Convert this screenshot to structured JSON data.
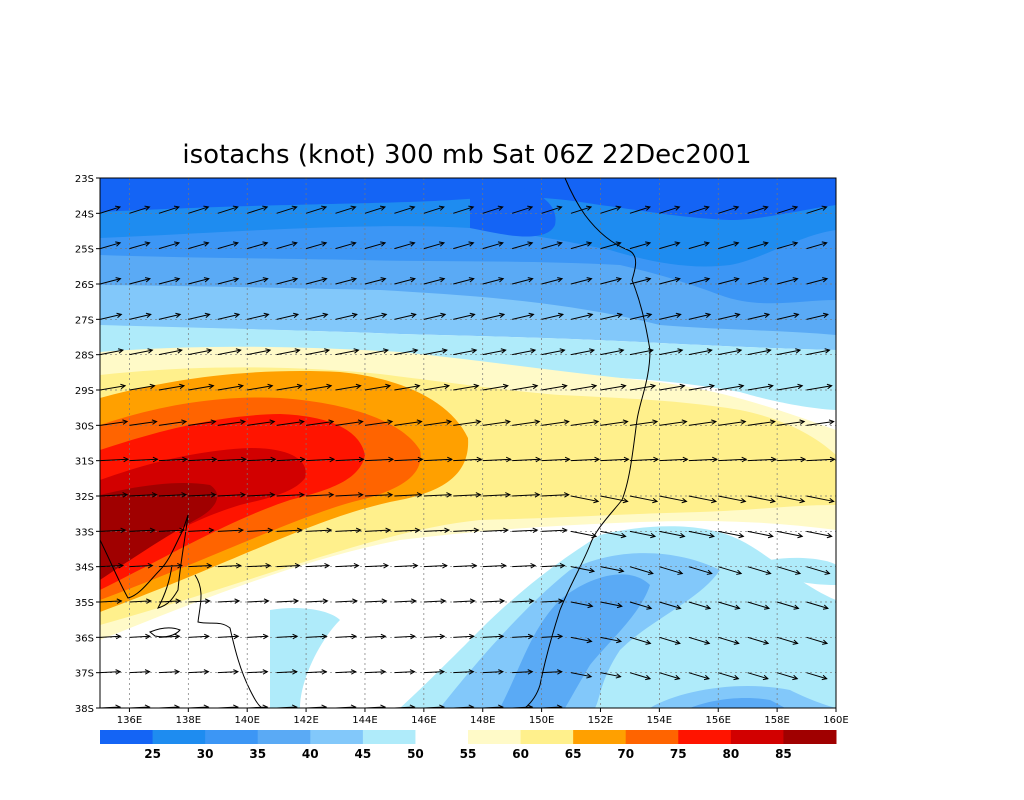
{
  "title": "isotachs (knot) 300 mb Sat 06Z 22Dec2001",
  "map": {
    "lon_range": [
      135,
      160
    ],
    "lat_range": [
      -38,
      -23
    ],
    "x_ticks": [
      "136E",
      "138E",
      "140E",
      "142E",
      "144E",
      "146E",
      "148E",
      "150E",
      "152E",
      "154E",
      "156E",
      "158E",
      "160E"
    ],
    "y_ticks": [
      "23S",
      "24S",
      "25S",
      "26S",
      "27S",
      "28S",
      "29S",
      "30S",
      "31S",
      "32S",
      "33S",
      "34S",
      "35S",
      "36S",
      "37S",
      "38S"
    ],
    "grid": "dotted"
  },
  "colorbar": {
    "labels": [
      "25",
      "30",
      "35",
      "40",
      "45",
      "50",
      "55",
      "60",
      "65",
      "70",
      "75",
      "80",
      "85"
    ],
    "colors": [
      "#1464f5",
      "#1e8cf0",
      "#3c96f5",
      "#5aaaf5",
      "#82c8fa",
      "#afebfa",
      "#ffffff",
      "#fffac8",
      "#fff08c",
      "#ffa000",
      "#ff6400",
      "#ff1400",
      "#d20000",
      "#a00000"
    ]
  }
}
